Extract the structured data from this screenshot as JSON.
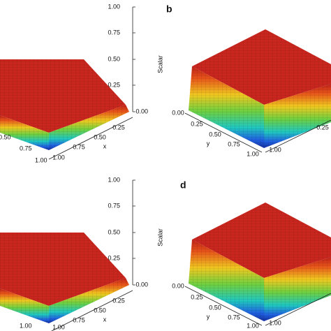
{
  "panels": [
    {
      "z_axis": {
        "title": "Scalar",
        "ticks": [
          "1.00",
          "0.75",
          "0.50",
          "0.25",
          "0.00"
        ]
      },
      "x_axis": {
        "title": "x",
        "ticks": [
          "0.25",
          "0.50",
          "0.75",
          "1.00"
        ]
      },
      "y_axis": {
        "ticks": [
          "0.50",
          "0.75",
          "1.00"
        ]
      }
    },
    {
      "label": "b",
      "x_axis": {
        "ticks": [
          "0.25",
          "1.00"
        ]
      },
      "y_axis": {
        "title": "y",
        "ticks": [
          "0.00",
          "0.25",
          "0.50",
          "0.75",
          "1.00"
        ]
      }
    },
    {
      "z_axis": {
        "title": "Scalar",
        "ticks": [
          "1.00",
          "0.75",
          "0.50",
          "0.25",
          "0.00"
        ]
      },
      "x_axis": {
        "title": "x",
        "ticks": [
          "0.25",
          "0.50",
          "0.75",
          "1.00"
        ]
      },
      "y_axis": {
        "ticks": [
          "1.00"
        ]
      }
    },
    {
      "label": "d",
      "x_axis": {
        "ticks": [
          "1.00"
        ]
      },
      "y_axis": {
        "title": "y",
        "ticks": [
          "0.00",
          "0.25",
          "0.50",
          "0.75",
          "1.00"
        ]
      }
    }
  ]
}
